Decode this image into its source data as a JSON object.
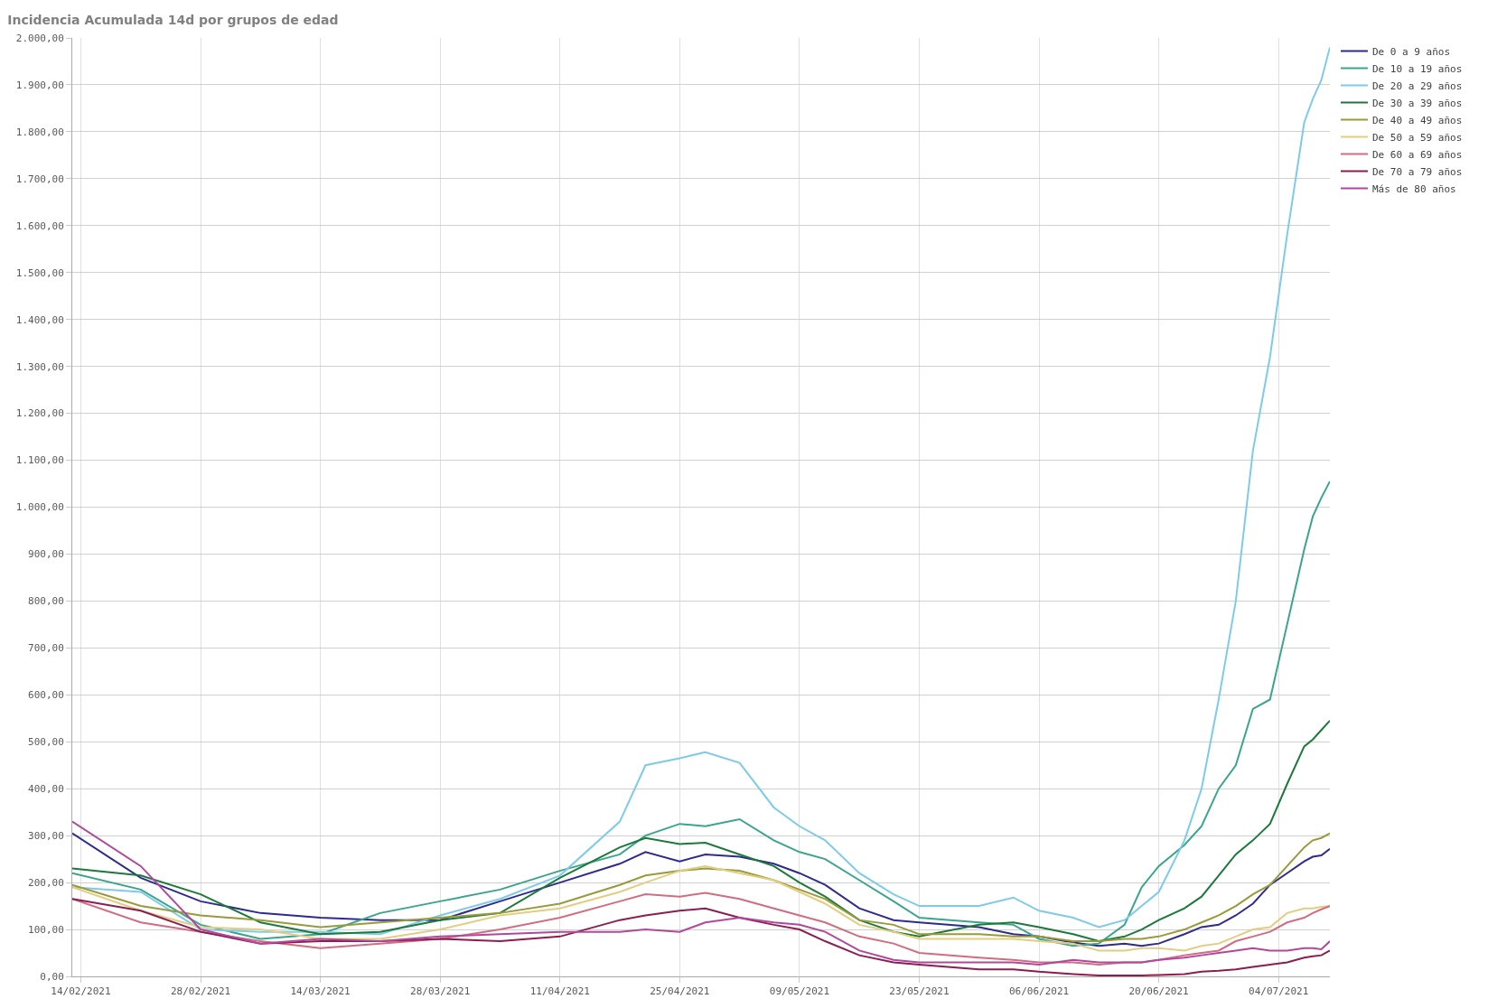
{
  "chart_data": {
    "type": "line",
    "title": "Incidencia Acumulada 14d por grupos de edad",
    "x": [
      "2021-02-13",
      "2021-02-21",
      "2021-02-28",
      "2021-03-07",
      "2021-03-14",
      "2021-03-21",
      "2021-03-28",
      "2021-04-04",
      "2021-04-11",
      "2021-04-18",
      "2021-04-21",
      "2021-04-25",
      "2021-04-28",
      "2021-05-02",
      "2021-05-06",
      "2021-05-09",
      "2021-05-12",
      "2021-05-16",
      "2021-05-20",
      "2021-05-23",
      "2021-05-30",
      "2021-06-03",
      "2021-06-06",
      "2021-06-10",
      "2021-06-13",
      "2021-06-16",
      "2021-06-18",
      "2021-06-20",
      "2021-06-23",
      "2021-06-25",
      "2021-06-27",
      "2021-06-29",
      "2021-07-01",
      "2021-07-03",
      "2021-07-05",
      "2021-07-07",
      "2021-07-08",
      "2021-07-09",
      "2021-07-10"
    ],
    "series": [
      {
        "name": "De 0 a 9 años",
        "color": "#2e2a8f",
        "values": [
          305,
          210,
          160,
          135,
          125,
          120,
          120,
          160,
          200,
          240,
          265,
          245,
          260,
          255,
          240,
          220,
          195,
          145,
          120,
          115,
          105,
          90,
          85,
          72,
          65,
          70,
          65,
          70,
          90,
          105,
          110,
          130,
          155,
          195,
          220,
          245,
          255,
          258,
          272
        ]
      },
      {
        "name": "De 10 a 19 años",
        "color": "#3aa58c",
        "values": [
          220,
          185,
          110,
          80,
          90,
          135,
          160,
          185,
          225,
          260,
          300,
          325,
          320,
          335,
          290,
          265,
          250,
          205,
          160,
          125,
          115,
          110,
          80,
          65,
          70,
          110,
          190,
          235,
          280,
          320,
          400,
          450,
          570,
          590,
          750,
          910,
          980,
          1020,
          1055
        ]
      },
      {
        "name": "De 20 a 29 años",
        "color": "#7ecbe9",
        "values": [
          190,
          180,
          100,
          95,
          95,
          90,
          130,
          165,
          215,
          330,
          450,
          465,
          478,
          455,
          360,
          320,
          290,
          220,
          175,
          150,
          150,
          168,
          140,
          125,
          105,
          120,
          150,
          180,
          290,
          400,
          590,
          800,
          1120,
          1320,
          1580,
          1820,
          1870,
          1910,
          1980
        ]
      },
      {
        "name": "De 30 a 39 años",
        "color": "#1b7a3a",
        "values": [
          230,
          215,
          175,
          115,
          90,
          95,
          120,
          135,
          210,
          275,
          295,
          282,
          285,
          260,
          235,
          200,
          170,
          120,
          95,
          85,
          110,
          115,
          105,
          90,
          75,
          85,
          100,
          120,
          145,
          170,
          215,
          260,
          290,
          325,
          410,
          490,
          505,
          525,
          545
        ]
      },
      {
        "name": "De 40 a 49 años",
        "color": "#999a3a",
        "values": [
          195,
          150,
          130,
          120,
          105,
          115,
          125,
          135,
          155,
          195,
          215,
          225,
          230,
          225,
          205,
          185,
          165,
          120,
          110,
          90,
          90,
          85,
          85,
          75,
          75,
          80,
          80,
          85,
          100,
          115,
          130,
          150,
          175,
          195,
          235,
          275,
          290,
          295,
          305
        ]
      },
      {
        "name": "De 50 a 59 años",
        "color": "#e2cd80",
        "values": [
          190,
          140,
          105,
          100,
          80,
          80,
          100,
          130,
          145,
          180,
          200,
          225,
          235,
          220,
          205,
          180,
          155,
          110,
          95,
          80,
          80,
          80,
          75,
          70,
          55,
          55,
          60,
          60,
          55,
          65,
          70,
          85,
          100,
          105,
          135,
          145,
          145,
          148,
          150
        ]
      },
      {
        "name": "De 60 a 69 años",
        "color": "#d26c80",
        "values": [
          165,
          115,
          95,
          75,
          60,
          70,
          80,
          100,
          125,
          160,
          175,
          170,
          178,
          165,
          145,
          130,
          115,
          85,
          70,
          50,
          40,
          35,
          30,
          30,
          25,
          30,
          30,
          35,
          45,
          50,
          55,
          75,
          85,
          95,
          115,
          125,
          135,
          143,
          150
        ]
      },
      {
        "name": "De 70 a 79 años",
        "color": "#8b1e4f",
        "values": [
          165,
          140,
          95,
          70,
          75,
          75,
          80,
          75,
          85,
          120,
          130,
          140,
          145,
          125,
          110,
          100,
          75,
          45,
          30,
          25,
          15,
          15,
          10,
          5,
          2,
          2,
          2,
          3,
          5,
          10,
          12,
          15,
          20,
          25,
          30,
          40,
          43,
          45,
          55
        ]
      },
      {
        "name": "Más de 80 años",
        "color": "#b2479e",
        "values": [
          330,
          235,
          100,
          70,
          80,
          75,
          85,
          90,
          95,
          95,
          100,
          95,
          115,
          125,
          115,
          110,
          95,
          55,
          35,
          30,
          30,
          30,
          25,
          35,
          30,
          30,
          30,
          35,
          40,
          45,
          50,
          55,
          60,
          55,
          55,
          60,
          60,
          58,
          75
        ]
      }
    ],
    "xlim": [
      "2021-02-13",
      "2021-07-10"
    ],
    "xticks": [
      {
        "value": "2021-02-14",
        "label": "14/02/2021"
      },
      {
        "value": "2021-02-28",
        "label": "28/02/2021"
      },
      {
        "value": "2021-03-14",
        "label": "14/03/2021"
      },
      {
        "value": "2021-03-28",
        "label": "28/03/2021"
      },
      {
        "value": "2021-04-11",
        "label": "11/04/2021"
      },
      {
        "value": "2021-04-25",
        "label": "25/04/2021"
      },
      {
        "value": "2021-05-09",
        "label": "09/05/2021"
      },
      {
        "value": "2021-05-23",
        "label": "23/05/2021"
      },
      {
        "value": "2021-06-06",
        "label": "06/06/2021"
      },
      {
        "value": "2021-06-20",
        "label": "20/06/2021"
      },
      {
        "value": "2021-07-04",
        "label": "04/07/2021"
      }
    ],
    "ylim": [
      0,
      2000
    ],
    "yticks": [
      {
        "value": 0,
        "label": "0,00"
      },
      {
        "value": 100,
        "label": "100,00"
      },
      {
        "value": 200,
        "label": "200,00"
      },
      {
        "value": 300,
        "label": "300,00"
      },
      {
        "value": 400,
        "label": "400,00"
      },
      {
        "value": 500,
        "label": "500,00"
      },
      {
        "value": 600,
        "label": "600,00"
      },
      {
        "value": 700,
        "label": "700,00"
      },
      {
        "value": 800,
        "label": "800,00"
      },
      {
        "value": 900,
        "label": "900,00"
      },
      {
        "value": 1000,
        "label": "1.000,00"
      },
      {
        "value": 1100,
        "label": "1.100,00"
      },
      {
        "value": 1200,
        "label": "1.200,00"
      },
      {
        "value": 1300,
        "label": "1.300,00"
      },
      {
        "value": 1400,
        "label": "1.400,00"
      },
      {
        "value": 1500,
        "label": "1.500,00"
      },
      {
        "value": 1600,
        "label": "1.600,00"
      },
      {
        "value": 1700,
        "label": "1.700,00"
      },
      {
        "value": 1800,
        "label": "1.800,00"
      },
      {
        "value": 1900,
        "label": "1.900,00"
      },
      {
        "value": 2000,
        "label": "2.000,00"
      }
    ],
    "grid": true,
    "legend": "top right",
    "marker": "none",
    "line_style": "solid"
  }
}
